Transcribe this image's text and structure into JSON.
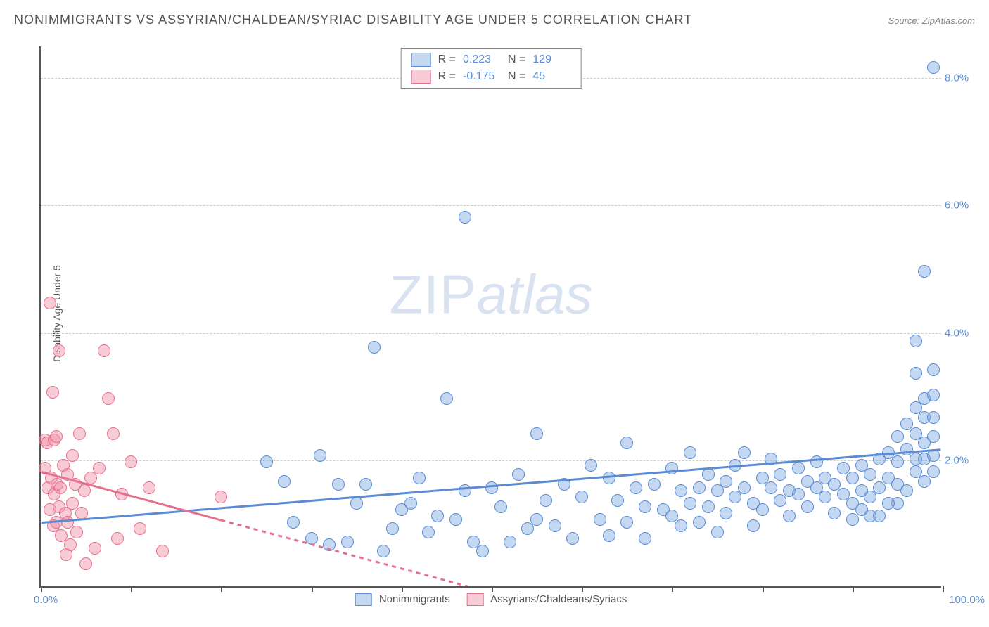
{
  "title": "NONIMMIGRANTS VS ASSYRIAN/CHALDEAN/SYRIAC DISABILITY AGE UNDER 5 CORRELATION CHART",
  "source": "Source: ZipAtlas.com",
  "ylabel": "Disability Age Under 5",
  "watermark_zip": "ZIP",
  "watermark_atlas": "atlas",
  "chart": {
    "type": "scatter",
    "xlim": [
      0,
      100
    ],
    "ylim": [
      0,
      8.5
    ],
    "ytick_values": [
      2.0,
      4.0,
      6.0,
      8.0
    ],
    "ytick_labels": [
      "2.0%",
      "4.0%",
      "6.0%",
      "8.0%"
    ],
    "xtick_positions": [
      0,
      10,
      20,
      30,
      40,
      50,
      60,
      70,
      80,
      90,
      100
    ],
    "x_axis_left_label": "0.0%",
    "x_axis_right_label": "100.0%",
    "background_color": "#ffffff",
    "grid_color": "#cccccc",
    "axis_color": "#555555",
    "marker_radius": 9,
    "marker_stroke_width": 1.5,
    "trend_line_width": 3
  },
  "series": {
    "blue": {
      "label": "Nonimmigrants",
      "fill": "rgba(127,168,224,0.45)",
      "stroke": "#5b8bd4",
      "R": "0.223",
      "N": "129",
      "trend": {
        "y_at_x0": 1.0,
        "y_at_x100": 2.15,
        "solid_from_x": 0,
        "solid_to_x": 100
      },
      "points": [
        [
          25,
          1.95
        ],
        [
          27,
          1.65
        ],
        [
          28,
          1.0
        ],
        [
          30,
          0.75
        ],
        [
          31,
          2.05
        ],
        [
          32,
          0.65
        ],
        [
          33,
          1.6
        ],
        [
          34,
          0.7
        ],
        [
          35,
          1.3
        ],
        [
          36,
          1.6
        ],
        [
          37,
          3.75
        ],
        [
          38,
          0.55
        ],
        [
          39,
          0.9
        ],
        [
          40,
          1.2
        ],
        [
          41,
          1.3
        ],
        [
          42,
          1.7
        ],
        [
          43,
          0.85
        ],
        [
          44,
          1.1
        ],
        [
          45,
          2.95
        ],
        [
          46,
          1.05
        ],
        [
          47,
          5.8
        ],
        [
          47,
          1.5
        ],
        [
          48,
          0.7
        ],
        [
          49,
          0.55
        ],
        [
          50,
          1.55
        ],
        [
          51,
          1.25
        ],
        [
          52,
          0.7
        ],
        [
          53,
          1.75
        ],
        [
          54,
          0.9
        ],
        [
          55,
          2.4
        ],
        [
          55,
          1.05
        ],
        [
          56,
          1.35
        ],
        [
          57,
          0.95
        ],
        [
          58,
          1.6
        ],
        [
          59,
          0.75
        ],
        [
          60,
          1.4
        ],
        [
          61,
          1.9
        ],
        [
          62,
          1.05
        ],
        [
          63,
          0.8
        ],
        [
          63,
          1.7
        ],
        [
          64,
          1.35
        ],
        [
          65,
          2.25
        ],
        [
          65,
          1.0
        ],
        [
          66,
          1.55
        ],
        [
          67,
          1.25
        ],
        [
          67,
          0.75
        ],
        [
          68,
          1.6
        ],
        [
          69,
          1.2
        ],
        [
          70,
          1.85
        ],
        [
          70,
          1.1
        ],
        [
          71,
          1.5
        ],
        [
          71,
          0.95
        ],
        [
          72,
          2.1
        ],
        [
          72,
          1.3
        ],
        [
          73,
          1.55
        ],
        [
          73,
          1.0
        ],
        [
          74,
          1.75
        ],
        [
          74,
          1.25
        ],
        [
          75,
          0.85
        ],
        [
          75,
          1.5
        ],
        [
          76,
          1.65
        ],
        [
          76,
          1.15
        ],
        [
          77,
          1.9
        ],
        [
          77,
          1.4
        ],
        [
          78,
          2.1
        ],
        [
          78,
          1.55
        ],
        [
          79,
          1.3
        ],
        [
          79,
          0.95
        ],
        [
          80,
          1.7
        ],
        [
          80,
          1.2
        ],
        [
          81,
          1.55
        ],
        [
          81,
          2.0
        ],
        [
          82,
          1.35
        ],
        [
          82,
          1.75
        ],
        [
          83,
          1.5
        ],
        [
          83,
          1.1
        ],
        [
          84,
          1.85
        ],
        [
          84,
          1.45
        ],
        [
          85,
          1.65
        ],
        [
          85,
          1.25
        ],
        [
          86,
          1.55
        ],
        [
          86,
          1.95
        ],
        [
          87,
          1.4
        ],
        [
          87,
          1.7
        ],
        [
          88,
          1.6
        ],
        [
          88,
          1.15
        ],
        [
          89,
          1.85
        ],
        [
          89,
          1.45
        ],
        [
          90,
          1.7
        ],
        [
          90,
          1.3
        ],
        [
          91,
          1.9
        ],
        [
          91,
          1.5
        ],
        [
          92,
          1.75
        ],
        [
          92,
          1.4
        ],
        [
          93,
          2.0
        ],
        [
          93,
          1.55
        ],
        [
          94,
          1.7
        ],
        [
          94,
          2.1
        ],
        [
          95,
          1.6
        ],
        [
          95,
          1.95
        ],
        [
          95,
          2.35
        ],
        [
          96,
          1.5
        ],
        [
          96,
          2.15
        ],
        [
          96,
          2.55
        ],
        [
          97,
          1.8
        ],
        [
          97,
          2.0
        ],
        [
          97,
          2.4
        ],
        [
          97,
          2.8
        ],
        [
          97,
          3.35
        ],
        [
          97,
          3.85
        ],
        [
          98,
          1.65
        ],
        [
          98,
          2.0
        ],
        [
          98,
          2.25
        ],
        [
          98,
          2.65
        ],
        [
          98,
          2.95
        ],
        [
          98,
          4.95
        ],
        [
          99,
          1.8
        ],
        [
          99,
          2.05
        ],
        [
          99,
          2.35
        ],
        [
          99,
          2.65
        ],
        [
          99,
          3.0
        ],
        [
          99,
          3.4
        ],
        [
          99,
          8.15
        ],
        [
          95,
          1.3
        ],
        [
          94,
          1.3
        ],
        [
          93,
          1.1
        ],
        [
          92,
          1.1
        ],
        [
          91,
          1.2
        ],
        [
          90,
          1.05
        ]
      ]
    },
    "pink": {
      "label": "Assyrians/Chaldeans/Syriacs",
      "fill": "rgba(240,142,165,0.45)",
      "stroke": "#e5718f",
      "R": "-0.175",
      "N": "45",
      "trend": {
        "y_at_x0": 1.8,
        "y_at_x100": -2.0,
        "solid_from_x": 0,
        "solid_to_x": 20
      },
      "points": [
        [
          0.5,
          2.3
        ],
        [
          0.5,
          1.85
        ],
        [
          0.7,
          2.25
        ],
        [
          0.8,
          1.55
        ],
        [
          1.0,
          4.45
        ],
        [
          1.0,
          1.2
        ],
        [
          1.2,
          1.7
        ],
        [
          1.3,
          3.05
        ],
        [
          1.4,
          0.95
        ],
        [
          1.5,
          1.45
        ],
        [
          1.5,
          2.3
        ],
        [
          1.7,
          2.35
        ],
        [
          1.7,
          1.0
        ],
        [
          1.8,
          1.6
        ],
        [
          2.0,
          3.7
        ],
        [
          2.0,
          1.25
        ],
        [
          2.2,
          1.55
        ],
        [
          2.3,
          0.8
        ],
        [
          2.5,
          1.9
        ],
        [
          2.7,
          1.15
        ],
        [
          2.8,
          0.5
        ],
        [
          3.0,
          1.75
        ],
        [
          3.0,
          1.0
        ],
        [
          3.3,
          0.65
        ],
        [
          3.5,
          2.05
        ],
        [
          3.5,
          1.3
        ],
        [
          3.8,
          1.6
        ],
        [
          4.0,
          0.85
        ],
        [
          4.3,
          2.4
        ],
        [
          4.5,
          1.15
        ],
        [
          4.8,
          1.5
        ],
        [
          5,
          0.35
        ],
        [
          5.5,
          1.7
        ],
        [
          6,
          0.6
        ],
        [
          6.5,
          1.85
        ],
        [
          7,
          3.7
        ],
        [
          7.5,
          2.95
        ],
        [
          8,
          2.4
        ],
        [
          8.5,
          0.75
        ],
        [
          9,
          1.45
        ],
        [
          10,
          1.95
        ],
        [
          11,
          0.9
        ],
        [
          12,
          1.55
        ],
        [
          13.5,
          0.55
        ],
        [
          20,
          1.4
        ]
      ]
    }
  },
  "legend_top": {
    "r_label": "R =",
    "n_label": "N ="
  }
}
